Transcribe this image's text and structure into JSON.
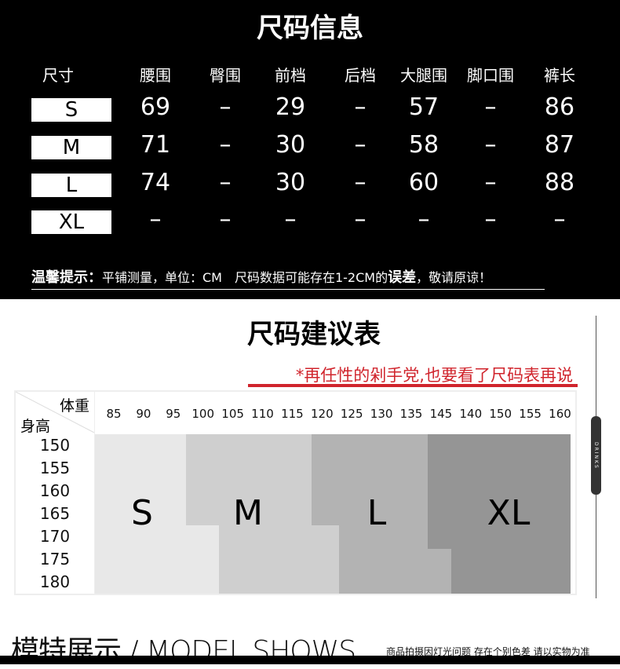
{
  "size_info": {
    "title": "尺码信息",
    "headers": [
      "尺寸",
      "腰围",
      "臀围",
      "前档",
      "后档",
      "大腿围",
      "脚口围",
      "裤长"
    ],
    "rows": [
      {
        "size": "S",
        "values": [
          "69",
          "–",
          "29",
          "–",
          "57",
          "–",
          "86"
        ]
      },
      {
        "size": "M",
        "values": [
          "71",
          "–",
          "30",
          "–",
          "58",
          "–",
          "87"
        ]
      },
      {
        "size": "L",
        "values": [
          "74",
          "–",
          "30",
          "–",
          "60",
          "–",
          "88"
        ]
      },
      {
        "size": "XL",
        "values": [
          "–",
          "–",
          "–",
          "–",
          "–",
          "–",
          "–"
        ]
      }
    ],
    "notice_label": "温馨提示：",
    "notice_text": "平铺测量，单位：CM　尺码数据可能存在1-2CM的",
    "notice_bold": "误差",
    "notice_end": "，敬请原谅！"
  },
  "recommend": {
    "title": "尺码建议表",
    "slogan": "*再任性的剁手党,也要看了尺码表再说",
    "weight_label": "体重",
    "height_label": "身高",
    "weights": [
      "85",
      "90",
      "95",
      "100",
      "105",
      "110",
      "115",
      "120",
      "125",
      "130",
      "135",
      "145",
      "140",
      "150",
      "155",
      "160"
    ],
    "heights": [
      "150",
      "155",
      "160",
      "165",
      "170",
      "175",
      "180"
    ],
    "sizes": [
      {
        "label": "S",
        "color": "#e8e8e8"
      },
      {
        "label": "M",
        "color": "#cfcfcf"
      },
      {
        "label": "L",
        "color": "#b3b3b3"
      },
      {
        "label": "XL",
        "color": "#959595"
      }
    ],
    "side_badge": "DRINKS"
  },
  "footer": {
    "title": "模特展示 / MODEL SHOWS",
    "note": "商品拍摄因灯光问题 存在个别色差 请以实物为准"
  }
}
